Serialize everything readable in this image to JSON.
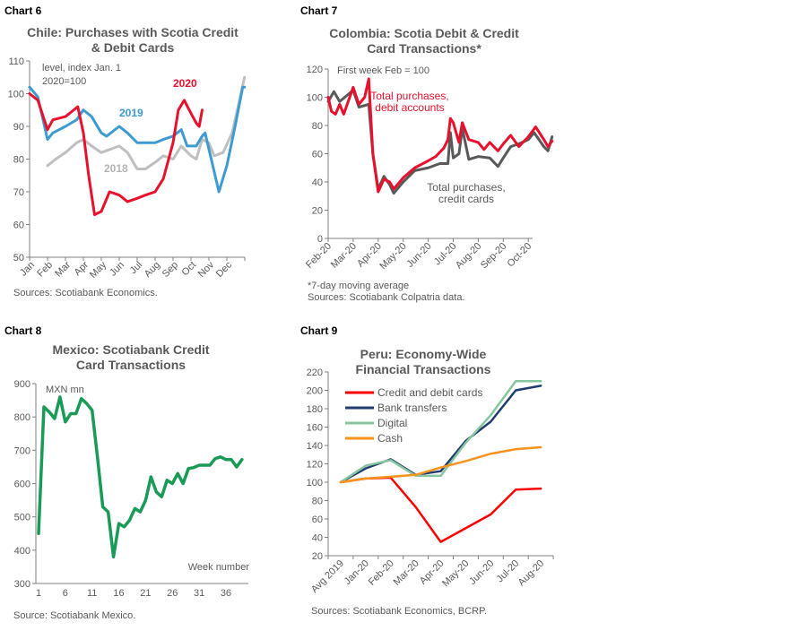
{
  "chart_data": [
    {
      "type": "line",
      "label": "Chart 6",
      "title": [
        "Chile: Purchases with Scotia Credit",
        "& Debit Cards"
      ],
      "annotation": [
        "level, index Jan. 1",
        "2020=100"
      ],
      "ylim": [
        50,
        110
      ],
      "yticks": [
        50,
        60,
        70,
        80,
        90,
        100,
        110
      ],
      "xticks": [
        "Jan",
        "Feb",
        "Mar",
        "Apr",
        "May",
        "Jun",
        "Jul",
        "Aug",
        "Sep",
        "Oct",
        "Nov",
        "Dec"
      ],
      "source": "Sources: Scotiabank Economics.",
      "series": [
        {
          "name": "2018",
          "color": "#bfbfbf",
          "points": [
            [
              "02-01",
              78
            ],
            [
              "02-15",
              80
            ],
            [
              "03-01",
              82
            ],
            [
              "03-20",
              85
            ],
            [
              "04-01",
              86
            ],
            [
              "04-15",
              84
            ],
            [
              "05-01",
              82
            ],
            [
              "06-01",
              84
            ],
            [
              "06-15",
              82
            ],
            [
              "07-01",
              77
            ],
            [
              "07-15",
              77
            ],
            [
              "08-01",
              79
            ],
            [
              "08-15",
              81
            ],
            [
              "09-01",
              80
            ],
            [
              "09-15",
              84
            ],
            [
              "10-01",
              81
            ],
            [
              "10-10",
              80
            ],
            [
              "10-20",
              86
            ],
            [
              "11-01",
              85
            ],
            [
              "11-10",
              81
            ],
            [
              "11-25",
              82
            ],
            [
              "12-10",
              88
            ],
            [
              "12-25",
              100
            ],
            [
              "12-31",
              105
            ]
          ]
        },
        {
          "name": "2019",
          "color": "#3d9bd1",
          "points": [
            [
              "01-01",
              102
            ],
            [
              "01-15",
              99
            ],
            [
              "02-01",
              86
            ],
            [
              "02-10",
              88
            ],
            [
              "03-01",
              90
            ],
            [
              "03-20",
              92
            ],
            [
              "04-01",
              95
            ],
            [
              "04-15",
              93
            ],
            [
              "05-01",
              88
            ],
            [
              "05-10",
              87
            ],
            [
              "06-01",
              90
            ],
            [
              "06-15",
              88
            ],
            [
              "07-01",
              85
            ],
            [
              "07-15",
              85
            ],
            [
              "08-01",
              85
            ],
            [
              "08-15",
              86
            ],
            [
              "09-01",
              87
            ],
            [
              "09-15",
              89
            ],
            [
              "09-25",
              84
            ],
            [
              "10-10",
              84
            ],
            [
              "10-20",
              87
            ],
            [
              "10-25",
              88
            ],
            [
              "11-05",
              80
            ],
            [
              "11-18",
              70
            ],
            [
              "12-01",
              78
            ],
            [
              "12-15",
              90
            ],
            [
              "12-28",
              102
            ],
            [
              "12-31",
              102
            ]
          ]
        },
        {
          "name": "2020",
          "color": "#e8112d",
          "points": [
            [
              "01-01",
              100
            ],
            [
              "01-15",
              98
            ],
            [
              "02-01",
              89
            ],
            [
              "02-10",
              92
            ],
            [
              "03-01",
              93
            ],
            [
              "03-15",
              95
            ],
            [
              "03-22",
              96
            ],
            [
              "04-01",
              88
            ],
            [
              "04-10",
              75
            ],
            [
              "04-20",
              63
            ],
            [
              "05-01",
              64
            ],
            [
              "05-15",
              70
            ],
            [
              "06-01",
              69
            ],
            [
              "06-15",
              67
            ],
            [
              "07-01",
              68
            ],
            [
              "07-15",
              69
            ],
            [
              "08-01",
              70
            ],
            [
              "08-15",
              74
            ],
            [
              "09-01",
              85
            ],
            [
              "09-10",
              95
            ],
            [
              "09-20",
              98
            ],
            [
              "10-01",
              94
            ],
            [
              "10-10",
              91
            ],
            [
              "10-15",
              90
            ],
            [
              "10-20",
              95
            ]
          ]
        }
      ]
    },
    {
      "type": "line",
      "label": "Chart 7",
      "title": [
        "Colombia:  Scotia Debit & Credit",
        "Card Transactions*"
      ],
      "annotation": [
        "First week Feb = 100"
      ],
      "ylim": [
        0,
        120
      ],
      "yticks": [
        0,
        20,
        40,
        60,
        80,
        100,
        120
      ],
      "xticks": [
        "Feb-20",
        "Mar-20",
        "Apr-20",
        "May-20",
        "Jun-20",
        "Jul-20",
        "Aug-20",
        "Sep-20",
        "Oct-20"
      ],
      "footnote": "*7-day moving average",
      "source": "Sources: Scotiabank Colpatria data.",
      "series": [
        {
          "name": [
            "Total purchases,",
            "credit cards"
          ],
          "color": "#595959",
          "points": [
            [
              "02-01",
              97
            ],
            [
              "02-08",
              104
            ],
            [
              "02-15",
              97
            ],
            [
              "03-01",
              105
            ],
            [
              "03-08",
              93
            ],
            [
              "03-20",
              95
            ],
            [
              "03-25",
              60
            ],
            [
              "04-01",
              35
            ],
            [
              "04-08",
              44
            ],
            [
              "04-15",
              38
            ],
            [
              "04-20",
              32
            ],
            [
              "05-01",
              40
            ],
            [
              "05-15",
              48
            ],
            [
              "06-01",
              50
            ],
            [
              "06-15",
              53
            ],
            [
              "06-25",
              53
            ],
            [
              "06-28",
              75
            ],
            [
              "07-01",
              57
            ],
            [
              "07-08",
              60
            ],
            [
              "07-12",
              78
            ],
            [
              "07-20",
              56
            ],
            [
              "08-01",
              58
            ],
            [
              "08-15",
              57
            ],
            [
              "08-25",
              51
            ],
            [
              "09-01",
              57
            ],
            [
              "09-10",
              65
            ],
            [
              "09-20",
              67
            ],
            [
              "10-01",
              70
            ],
            [
              "10-08",
              75
            ],
            [
              "10-20",
              65
            ],
            [
              "10-25",
              62
            ],
            [
              "10-30",
              72
            ]
          ]
        },
        {
          "name": [
            "Total purchases,",
            "debit accounts"
          ],
          "color": "#e8112d",
          "points": [
            [
              "02-01",
              100
            ],
            [
              "02-05",
              90
            ],
            [
              "02-10",
              88
            ],
            [
              "02-15",
              95
            ],
            [
              "02-20",
              88
            ],
            [
              "03-01",
              107
            ],
            [
              "03-08",
              95
            ],
            [
              "03-15",
              100
            ],
            [
              "03-20",
              113
            ],
            [
              "03-25",
              60
            ],
            [
              "04-01",
              33
            ],
            [
              "04-08",
              42
            ],
            [
              "04-15",
              40
            ],
            [
              "04-20",
              35
            ],
            [
              "05-01",
              43
            ],
            [
              "05-15",
              50
            ],
            [
              "06-01",
              55
            ],
            [
              "06-10",
              58
            ],
            [
              "06-20",
              64
            ],
            [
              "06-25",
              70
            ],
            [
              "06-28",
              85
            ],
            [
              "07-01",
              82
            ],
            [
              "07-08",
              68
            ],
            [
              "07-12",
              82
            ],
            [
              "07-20",
              70
            ],
            [
              "08-01",
              68
            ],
            [
              "08-08",
              63
            ],
            [
              "08-15",
              68
            ],
            [
              "08-25",
              62
            ],
            [
              "09-01",
              67
            ],
            [
              "09-10",
              73
            ],
            [
              "09-20",
              65
            ],
            [
              "10-01",
              72
            ],
            [
              "10-10",
              79
            ],
            [
              "10-20",
              70
            ],
            [
              "10-25",
              65
            ],
            [
              "10-30",
              69
            ]
          ]
        }
      ]
    },
    {
      "type": "line",
      "label": "Chart 8",
      "title": [
        "Mexico: Scotiabank Credit",
        "Card Transactions"
      ],
      "ylabel": "MXN mn",
      "xlabel": "Week number",
      "ylim": [
        300,
        900
      ],
      "yticks": [
        300,
        400,
        500,
        600,
        700,
        800,
        900
      ],
      "xticks": [
        1,
        6,
        11,
        16,
        21,
        26,
        31,
        36
      ],
      "source": "Source: Scotiabank Mexico.",
      "series": [
        {
          "color": "#1a9a57",
          "x": [
            1,
            2,
            3,
            4,
            5,
            6,
            7,
            8,
            9,
            10,
            11,
            12,
            13,
            14,
            15,
            16,
            17,
            18,
            19,
            20,
            21,
            22,
            23,
            24,
            25,
            26,
            27,
            28,
            29,
            30,
            31,
            32,
            33,
            34,
            35,
            36,
            37,
            38,
            39
          ],
          "values": [
            450,
            830,
            815,
            795,
            860,
            785,
            810,
            810,
            855,
            840,
            820,
            680,
            530,
            515,
            380,
            480,
            470,
            490,
            525,
            515,
            550,
            620,
            575,
            560,
            610,
            600,
            630,
            600,
            645,
            648,
            655,
            655,
            655,
            675,
            680,
            672,
            672,
            650,
            672
          ]
        }
      ]
    },
    {
      "type": "line",
      "label": "Chart 9",
      "title": [
        "Peru: Economy-Wide",
        "Financial  Transactions"
      ],
      "ylim": [
        20,
        220
      ],
      "yticks": [
        20,
        40,
        60,
        80,
        100,
        120,
        140,
        160,
        180,
        200,
        220
      ],
      "categories": [
        "Avg 2019",
        "Jan-20",
        "Feb-20",
        "Mar-20",
        "Apr-20",
        "May-20",
        "Jun-20",
        "Jul-20",
        "Aug-20"
      ],
      "legend": "top-left",
      "source": "Sources: Scotiabank Economics, BCRP.",
      "series": [
        {
          "name": "Credit and debit cards",
          "color": "#ff0000",
          "values": [
            100,
            104,
            105,
            73,
            35,
            50,
            65,
            92,
            93
          ]
        },
        {
          "name": "Bank transfers",
          "color": "#1f3d6e",
          "values": [
            100,
            115,
            125,
            108,
            112,
            145,
            166,
            200,
            205
          ]
        },
        {
          "name": "Digital",
          "color": "#86c5a0",
          "values": [
            100,
            118,
            124,
            107,
            107,
            143,
            173,
            210,
            210
          ]
        },
        {
          "name": "Cash",
          "color": "#f7931e",
          "values": [
            100,
            104,
            106,
            108,
            116,
            123,
            131,
            136,
            138
          ]
        }
      ]
    }
  ]
}
